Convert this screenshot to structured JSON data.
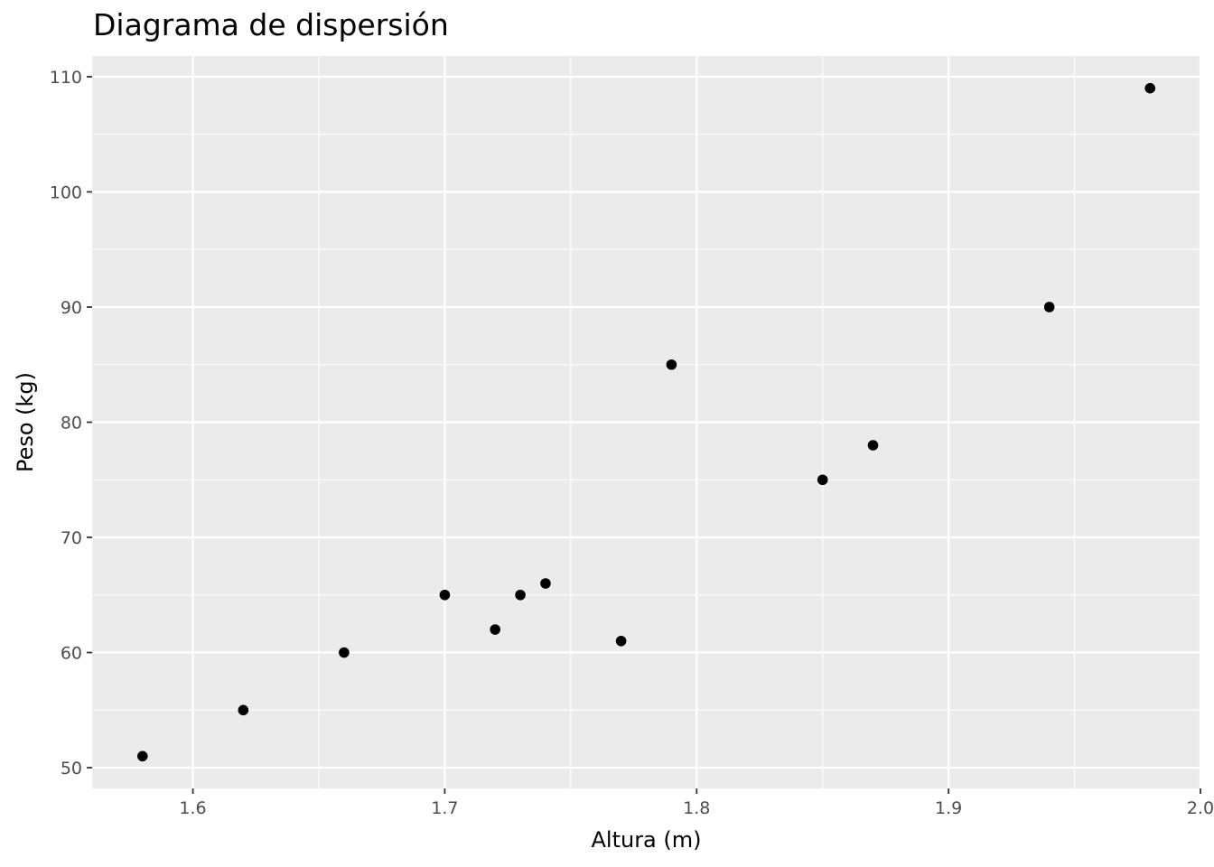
{
  "chart_data": {
    "type": "scatter",
    "title": "Diagrama de dispersión",
    "xlabel": "Altura (m)",
    "ylabel": "Peso (kg)",
    "xlim": [
      1.56,
      2.0
    ],
    "ylim": [
      48.2,
      111.8
    ],
    "x_ticks": [
      1.6,
      1.7,
      1.8,
      1.9,
      2.0
    ],
    "x_tick_labels": [
      "1.6",
      "1.7",
      "1.8",
      "1.9",
      "2.0"
    ],
    "y_ticks": [
      50,
      60,
      70,
      80,
      90,
      100,
      110
    ],
    "y_tick_labels": [
      "50",
      "60",
      "70",
      "80",
      "90",
      "100",
      "110"
    ],
    "grid": true,
    "points": [
      {
        "x": 1.58,
        "y": 51
      },
      {
        "x": 1.62,
        "y": 55
      },
      {
        "x": 1.66,
        "y": 60
      },
      {
        "x": 1.7,
        "y": 65
      },
      {
        "x": 1.72,
        "y": 62
      },
      {
        "x": 1.73,
        "y": 65
      },
      {
        "x": 1.74,
        "y": 66
      },
      {
        "x": 1.77,
        "y": 61
      },
      {
        "x": 1.79,
        "y": 85
      },
      {
        "x": 1.85,
        "y": 75
      },
      {
        "x": 1.87,
        "y": 78
      },
      {
        "x": 1.94,
        "y": 90
      },
      {
        "x": 1.98,
        "y": 109
      }
    ],
    "colors": {
      "panel": "#ebebeb",
      "grid": "#ffffff",
      "point": "#000000",
      "tick_text": "#4d4d4d",
      "axis_text": "#000000"
    }
  }
}
